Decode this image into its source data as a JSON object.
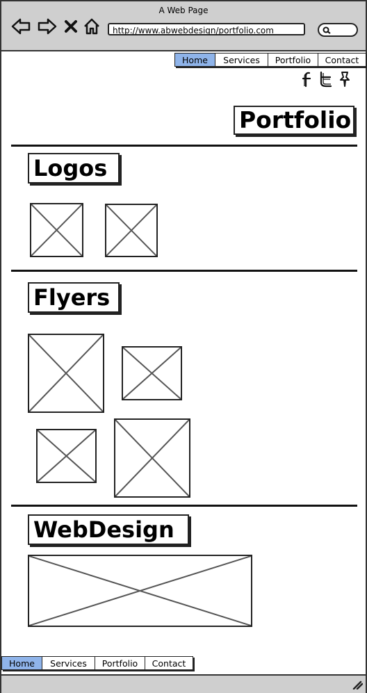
{
  "window": {
    "title": "A Web Page"
  },
  "browser": {
    "url": "http://www.abwebdesign/portfolio.com",
    "back_icon": "back-arrow-icon",
    "forward_icon": "forward-arrow-icon",
    "stop_icon": "close-icon",
    "home_icon": "home-icon",
    "search_icon": "search-icon"
  },
  "nav_top": {
    "items": [
      "Home",
      "Services",
      "Portfolio",
      "Contact"
    ],
    "active": "Home"
  },
  "social": [
    "facebook-icon",
    "twitter-icon",
    "pin-icon"
  ],
  "page": {
    "title": "Portfolio",
    "sections": {
      "logos": {
        "title": "Logos"
      },
      "flyers": {
        "title": "Flyers"
      },
      "webdesign": {
        "title": "WebDesign"
      }
    }
  },
  "nav_bottom": {
    "items": [
      "Home",
      "Services",
      "Portfolio",
      "Contact"
    ],
    "active": "Home"
  },
  "colors": {
    "active_tab": "#8fb4ea",
    "chrome": "#cfcfcf",
    "stroke": "#222222"
  }
}
